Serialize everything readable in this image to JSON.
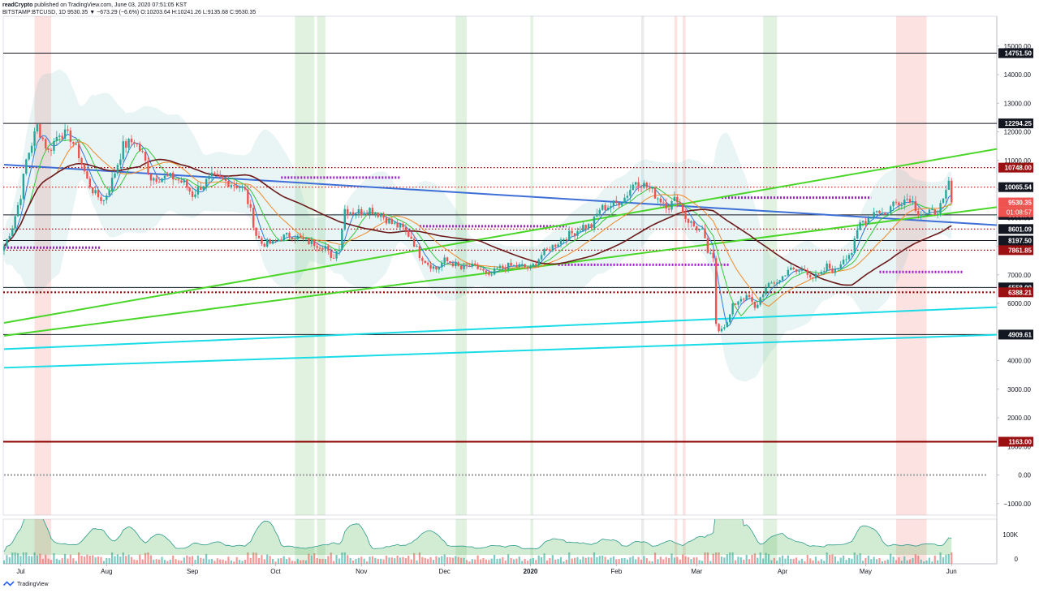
{
  "header": {
    "line1_author": "readCrypto",
    "line1_rest": " published on TradingView.com, June 03, 2020 07:51:05 KST",
    "line2": "BITSTAMP:BTCUSD, 1D 9530.35 ▼ −673.29 (−6.6%) O:10203.64 H:10241.26 L:9135.68 C:9530.35"
  },
  "footer": {
    "brand": "TradingView"
  },
  "chart_data": {
    "type": "candlestick",
    "symbol": "BITSTAMP:BTCUSD",
    "interval": "1D",
    "ylim": [
      -1000,
      15000
    ],
    "y_ticks": [
      -1000,
      0,
      1000,
      2000,
      3000,
      4000,
      5000,
      6000,
      7000,
      8000,
      9000,
      10000,
      11000,
      12000,
      13000,
      14000,
      15000
    ],
    "y_tick_labels": [
      "−1000.00",
      "0.00",
      "1000.00",
      "2000.00",
      "3000.00",
      "4000.00",
      "5000.00",
      "6000.00",
      "7000.00",
      "8000.00",
      "9000.00",
      "10000.00",
      "11000.00",
      "12000.00",
      "13000.00",
      "14000.00",
      "15000.00"
    ],
    "x_ticks": [
      {
        "day": 6,
        "label": "Jul"
      },
      {
        "day": 37,
        "label": "Aug"
      },
      {
        "day": 68,
        "label": "Sep"
      },
      {
        "day": 98,
        "label": "Oct"
      },
      {
        "day": 129,
        "label": "Nov"
      },
      {
        "day": 159,
        "label": "Dec"
      },
      {
        "day": 190,
        "label": "2020"
      },
      {
        "day": 221,
        "label": "Feb"
      },
      {
        "day": 250,
        "label": "Mar"
      },
      {
        "day": 281,
        "label": "Apr"
      },
      {
        "day": 311,
        "label": "May"
      },
      {
        "day": 342,
        "label": "Jun"
      }
    ],
    "close_anchors": [
      [
        0,
        8000
      ],
      [
        3,
        8700
      ],
      [
        6,
        9800
      ],
      [
        8,
        11000
      ],
      [
        12,
        12200
      ],
      [
        16,
        11300
      ],
      [
        20,
        12000
      ],
      [
        24,
        11800
      ],
      [
        27,
        11200
      ],
      [
        30,
        10300
      ],
      [
        33,
        9800
      ],
      [
        36,
        9600
      ],
      [
        39,
        10300
      ],
      [
        43,
        11500
      ],
      [
        47,
        11700
      ],
      [
        50,
        11200
      ],
      [
        53,
        10400
      ],
      [
        57,
        10400
      ],
      [
        61,
        10400
      ],
      [
        65,
        10200
      ],
      [
        68,
        9800
      ],
      [
        71,
        10100
      ],
      [
        75,
        10400
      ],
      [
        79,
        10300
      ],
      [
        82,
        10200
      ],
      [
        85,
        10100
      ],
      [
        87,
        9900
      ],
      [
        89,
        9200
      ],
      [
        91,
        8400
      ],
      [
        93,
        8100
      ],
      [
        97,
        8100
      ],
      [
        100,
        8300
      ],
      [
        104,
        8400
      ],
      [
        108,
        8200
      ],
      [
        112,
        8100
      ],
      [
        116,
        8000
      ],
      [
        118,
        7500
      ],
      [
        121,
        8000
      ],
      [
        123,
        9300
      ],
      [
        126,
        9200
      ],
      [
        129,
        9200
      ],
      [
        132,
        9300
      ],
      [
        136,
        9100
      ],
      [
        140,
        8800
      ],
      [
        144,
        8600
      ],
      [
        147,
        8300
      ],
      [
        150,
        7700
      ],
      [
        153,
        7400
      ],
      [
        156,
        7200
      ],
      [
        159,
        7500
      ],
      [
        162,
        7400
      ],
      [
        165,
        7200
      ],
      [
        168,
        7300
      ],
      [
        172,
        7200
      ],
      [
        175,
        6900
      ],
      [
        178,
        7200
      ],
      [
        181,
        7300
      ],
      [
        184,
        7300
      ],
      [
        187,
        7300
      ],
      [
        190,
        7200
      ],
      [
        194,
        7700
      ],
      [
        198,
        8000
      ],
      [
        202,
        8300
      ],
      [
        206,
        8500
      ],
      [
        209,
        8700
      ],
      [
        212,
        8700
      ],
      [
        215,
        9300
      ],
      [
        218,
        9400
      ],
      [
        221,
        9500
      ],
      [
        224,
        9700
      ],
      [
        228,
        10300
      ],
      [
        230,
        10200
      ],
      [
        233,
        10000
      ],
      [
        236,
        9700
      ],
      [
        240,
        9400
      ],
      [
        243,
        9700
      ],
      [
        246,
        9000
      ],
      [
        249,
        8700
      ],
      [
        252,
        8500
      ],
      [
        254,
        7800
      ],
      [
        256,
        7500
      ],
      [
        257,
        5300
      ],
      [
        258,
        5100
      ],
      [
        261,
        5300
      ],
      [
        263,
        5900
      ],
      [
        266,
        6200
      ],
      [
        269,
        6200
      ],
      [
        271,
        5800
      ],
      [
        274,
        6400
      ],
      [
        277,
        6700
      ],
      [
        280,
        6800
      ],
      [
        283,
        7200
      ],
      [
        286,
        7100
      ],
      [
        289,
        7200
      ],
      [
        292,
        6900
      ],
      [
        295,
        7000
      ],
      [
        297,
        7300
      ],
      [
        300,
        7100
      ],
      [
        303,
        7600
      ],
      [
        306,
        7800
      ],
      [
        309,
        8800
      ],
      [
        312,
        9000
      ],
      [
        315,
        9300
      ],
      [
        318,
        9100
      ],
      [
        321,
        9500
      ],
      [
        324,
        9600
      ],
      [
        327,
        9700
      ],
      [
        330,
        9200
      ],
      [
        333,
        9100
      ],
      [
        336,
        9200
      ],
      [
        339,
        9500
      ],
      [
        341,
        10200
      ],
      [
        342,
        9530
      ]
    ],
    "last_close": 9530.35,
    "horizontal_levels": [
      {
        "value": 14751.5,
        "label": "14751.50",
        "style": "solid",
        "color": "#131722",
        "badge": "#131722"
      },
      {
        "value": 12294.25,
        "label": "12294.25",
        "style": "solid",
        "color": "#131722",
        "badge": "#131722"
      },
      {
        "value": 10748.0,
        "label": "10748.00",
        "style": "dotted",
        "color": "#8b0000",
        "badge": "#9b1111"
      },
      {
        "value": 10065.54,
        "label": "10065.54",
        "style": "dotted",
        "color": "#d01010",
        "badge": "#131722"
      },
      {
        "value": 9530.35,
        "label": "9530.35",
        "style": "none",
        "color": "#ef5350",
        "badge": "#ef5350"
      },
      {
        "value": 9096.79,
        "label": "9096.79",
        "style": "solid",
        "color": "#131722",
        "badge": "#131722"
      },
      {
        "value": 8601.09,
        "label": "8601.09",
        "style": "dotted",
        "color": "#8b0000",
        "badge": "#131722"
      },
      {
        "value": 8197.5,
        "label": "8197.50",
        "style": "solid",
        "color": "#131722",
        "badge": "#131722"
      },
      {
        "value": 7861.85,
        "label": "7861.85",
        "style": "dotted",
        "color": "#8b0000",
        "badge": "#9b1111"
      },
      {
        "value": 6558.0,
        "label": "6558.00",
        "style": "solid",
        "color": "#131722",
        "badge": "#131722"
      },
      {
        "value": 6388.21,
        "label": "6388.21",
        "style": "dotted-thick",
        "color": "#8b0000",
        "badge": "#9b1111"
      },
      {
        "value": 4909.61,
        "label": "4909.61",
        "style": "solid",
        "color": "#131722",
        "badge": "#131722"
      },
      {
        "value": 1163.0,
        "label": "1163.00",
        "style": "solid-thick",
        "color": "#8b0000",
        "badge": "#9b1111"
      }
    ],
    "countdown_badge": "01:08:57",
    "trendlines": [
      {
        "name": "",
        "color": "#3d6fd6",
        "points": [
          [
            0,
            10850
          ],
          [
            373,
            8650
          ]
        ]
      },
      {
        "name": "",
        "color": "#4ad629",
        "points": [
          [
            0,
            5320
          ],
          [
            373,
            11650
          ]
        ]
      },
      {
        "name": "",
        "color": "#4ad629",
        "points": [
          [
            0,
            4870
          ],
          [
            373,
            9550
          ]
        ]
      },
      {
        "name": "",
        "color": "#19dce6",
        "points": [
          [
            0,
            4400
          ],
          [
            373,
            5930
          ]
        ]
      },
      {
        "name": "",
        "color": "#19dce6",
        "points": [
          [
            0,
            3750
          ],
          [
            373,
            4950
          ]
        ]
      }
    ],
    "dotted_segments": [
      {
        "x": [
          0,
          35
        ],
        "y": 7950,
        "color": "#a020c8"
      },
      {
        "x": [
          100,
          143
        ],
        "y": 10400,
        "color": "#a020c8"
      },
      {
        "x": [
          150,
          203
        ],
        "y": 8700,
        "color": "#a020c8"
      },
      {
        "x": [
          200,
          262
        ],
        "y": 7350,
        "color": "#a020c8"
      },
      {
        "x": [
          259,
          313
        ],
        "y": 9700,
        "color": "#a020c8"
      },
      {
        "x": [
          316,
          346
        ],
        "y": 7100,
        "color": "#a020c8"
      },
      {
        "x": [
          0,
          355
        ],
        "y": 0,
        "color": "#b8b8b8"
      }
    ],
    "vertical_bands": [
      {
        "x": [
          11,
          17
        ],
        "color": "red"
      },
      {
        "x": [
          105,
          112
        ],
        "color": "green"
      },
      {
        "x": [
          113,
          116
        ],
        "color": "green"
      },
      {
        "x": [
          163,
          167
        ],
        "color": "green"
      },
      {
        "x": [
          190,
          191
        ],
        "color": "green"
      },
      {
        "x": [
          230,
          231
        ],
        "color": "gray"
      },
      {
        "x": [
          242,
          243
        ],
        "color": "red"
      },
      {
        "x": [
          245,
          246
        ],
        "color": "red"
      },
      {
        "x": [
          274,
          279
        ],
        "color": "green"
      },
      {
        "x": [
          322,
          333
        ],
        "color": "red"
      }
    ],
    "volume_axis_labels": [
      "100K",
      "0"
    ]
  }
}
